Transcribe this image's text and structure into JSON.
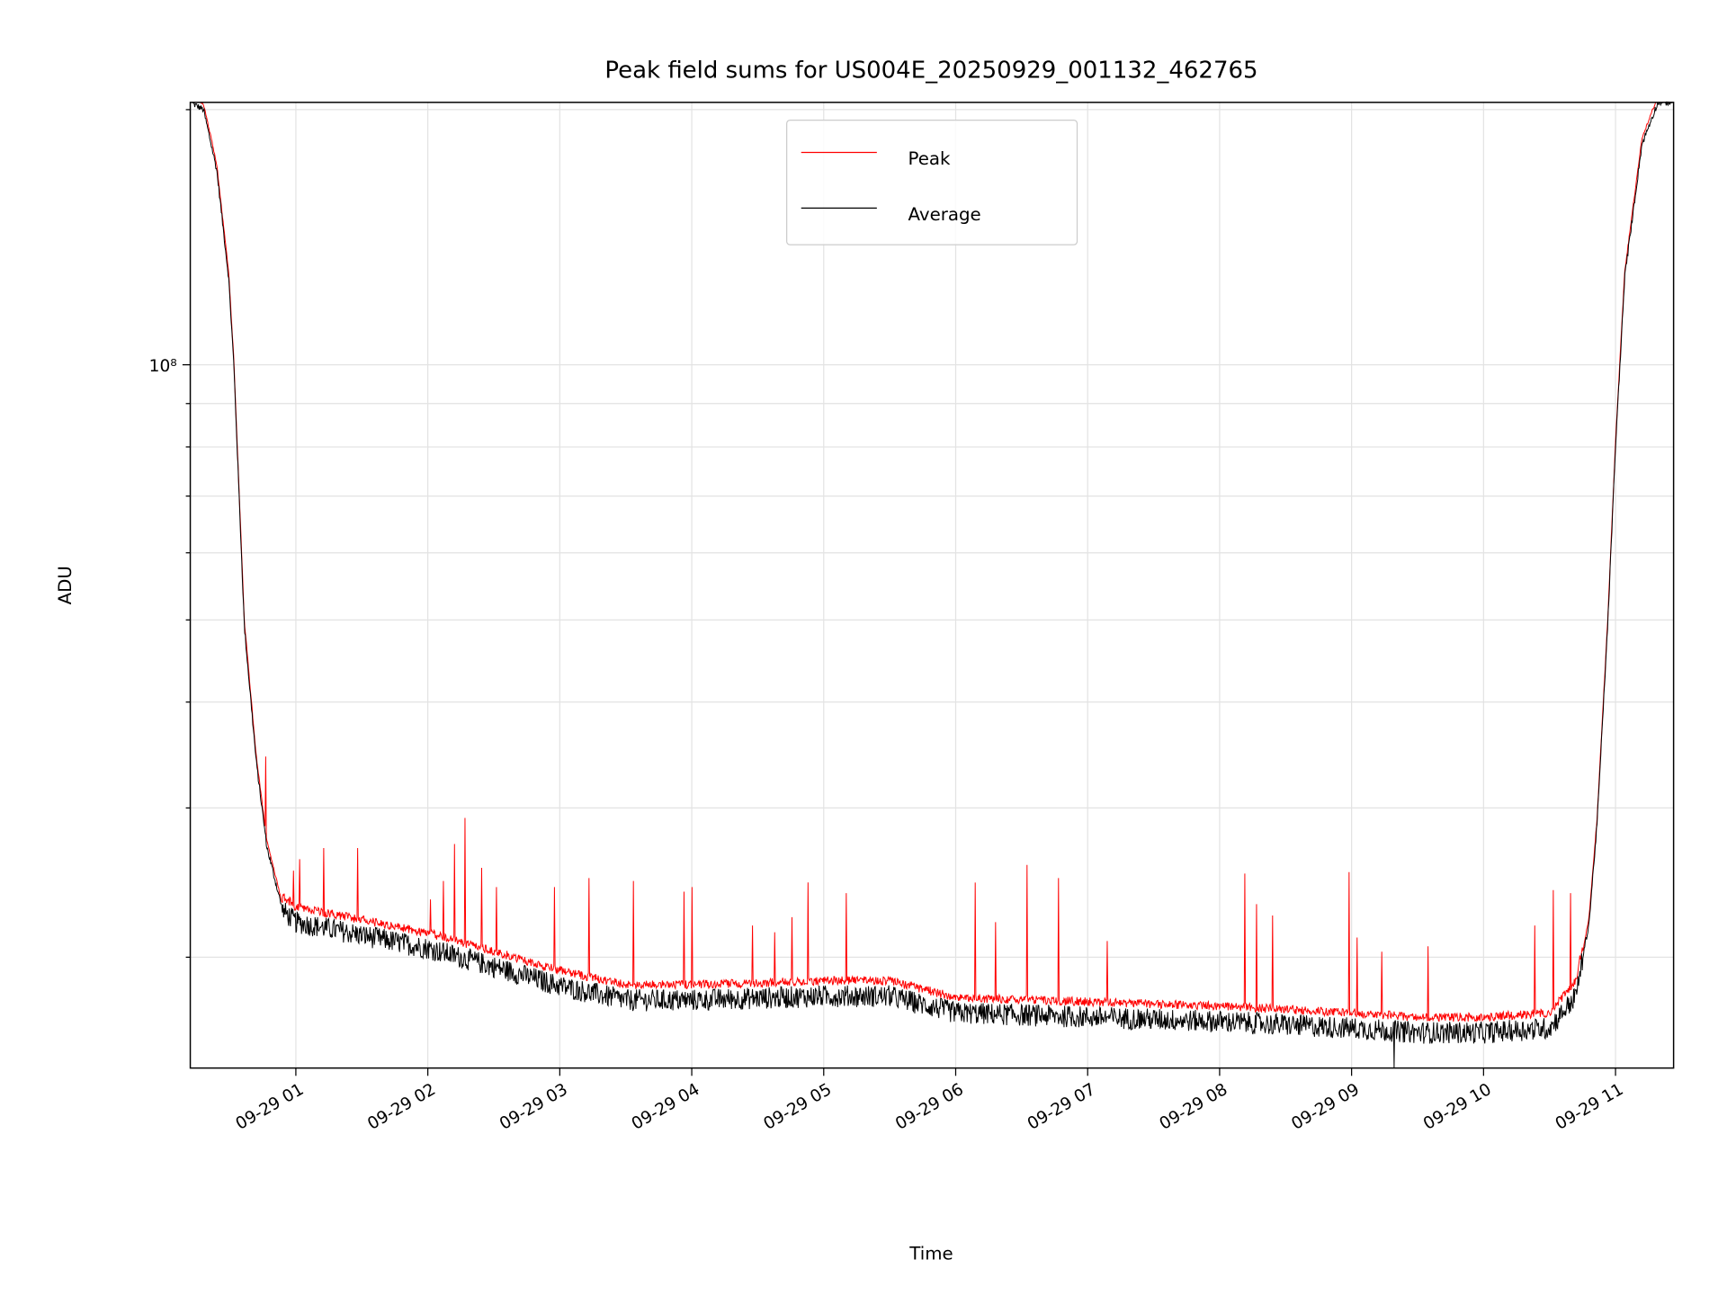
{
  "chart_data": {
    "type": "line",
    "title": "Peak field sums for US004E_20250929_001132_462765",
    "xlabel": "Time",
    "ylabel": "ADU",
    "yscale": "log",
    "ylim": [
      14800000,
      204000000
    ],
    "xlim_hours": [
      0.2,
      11.44
    ],
    "x_ticks": [
      {
        "hour": 1,
        "label": "09-29 01"
      },
      {
        "hour": 2,
        "label": "09-29 02"
      },
      {
        "hour": 3,
        "label": "09-29 03"
      },
      {
        "hour": 4,
        "label": "09-29 04"
      },
      {
        "hour": 5,
        "label": "09-29 05"
      },
      {
        "hour": 6,
        "label": "09-29 06"
      },
      {
        "hour": 7,
        "label": "09-29 07"
      },
      {
        "hour": 8,
        "label": "09-29 08"
      },
      {
        "hour": 9,
        "label": "09-29 09"
      },
      {
        "hour": 10,
        "label": "09-29 10"
      },
      {
        "hour": 11,
        "label": "09-29 11"
      }
    ],
    "y_major_ticks": [
      {
        "value": 100000000,
        "label": "10⁸"
      }
    ],
    "y_minor_ticks": [
      20000000,
      30000000,
      40000000,
      50000000,
      60000000,
      70000000,
      80000000,
      90000000,
      200000000
    ],
    "grid": true,
    "legend": {
      "placement": "top-center",
      "entries": [
        {
          "name": "Peak",
          "color": "#ff0000"
        },
        {
          "name": "Average",
          "color": "#000000"
        }
      ]
    },
    "average_baseline": [
      [
        0.2,
        204000000
      ],
      [
        0.3,
        200000000
      ],
      [
        0.4,
        170000000
      ],
      [
        0.49,
        127000000
      ],
      [
        0.53,
        100000000
      ],
      [
        0.61,
        49000000
      ],
      [
        0.7,
        34000000
      ],
      [
        0.78,
        27000000
      ],
      [
        0.9,
        22700000
      ],
      [
        1.0,
        22000000
      ],
      [
        2.0,
        20500000
      ],
      [
        2.5,
        19500000
      ],
      [
        3.0,
        18500000
      ],
      [
        3.5,
        17800000
      ],
      [
        4.0,
        17800000
      ],
      [
        5.0,
        18000000
      ],
      [
        5.5,
        18000000
      ],
      [
        6.0,
        17200000
      ],
      [
        7.0,
        17000000
      ],
      [
        8.0,
        16800000
      ],
      [
        9.0,
        16500000
      ],
      [
        9.5,
        16300000
      ],
      [
        10.0,
        16300000
      ],
      [
        10.5,
        16500000
      ],
      [
        10.7,
        18000000
      ],
      [
        10.8,
        22000000
      ],
      [
        10.86,
        28700000
      ],
      [
        10.94,
        49000000
      ],
      [
        11.0,
        80000000
      ],
      [
        11.07,
        127000000
      ],
      [
        11.2,
        182000000
      ],
      [
        11.32,
        204000000
      ],
      [
        11.44,
        204000000
      ]
    ],
    "peak_spikes": [
      [
        0.77,
        34500000
      ],
      [
        0.98,
        25300000
      ],
      [
        1.03,
        26100000
      ],
      [
        1.21,
        26900000
      ],
      [
        1.47,
        26900000
      ],
      [
        2.02,
        23400000
      ],
      [
        2.12,
        24600000
      ],
      [
        2.2,
        27200000
      ],
      [
        2.28,
        29200000
      ],
      [
        2.41,
        25500000
      ],
      [
        2.52,
        24200000
      ],
      [
        2.96,
        24200000
      ],
      [
        3.22,
        24800000
      ],
      [
        3.56,
        24600000
      ],
      [
        3.94,
        23900000
      ],
      [
        4.0,
        24200000
      ],
      [
        4.46,
        21800000
      ],
      [
        4.63,
        21400000
      ],
      [
        4.76,
        22300000
      ],
      [
        4.88,
        24500000
      ],
      [
        5.17,
        23800000
      ],
      [
        6.15,
        24500000
      ],
      [
        6.3,
        22000000
      ],
      [
        6.54,
        25700000
      ],
      [
        6.78,
        24800000
      ],
      [
        7.15,
        20900000
      ],
      [
        8.19,
        25100000
      ],
      [
        8.28,
        23100000
      ],
      [
        8.4,
        22400000
      ],
      [
        8.98,
        25200000
      ],
      [
        9.04,
        21100000
      ],
      [
        9.23,
        20300000
      ],
      [
        9.58,
        20600000
      ],
      [
        10.39,
        21800000
      ],
      [
        10.53,
        24000000
      ],
      [
        10.66,
        23800000
      ]
    ],
    "average_dips": [
      [
        9.32,
        14800000
      ]
    ]
  }
}
